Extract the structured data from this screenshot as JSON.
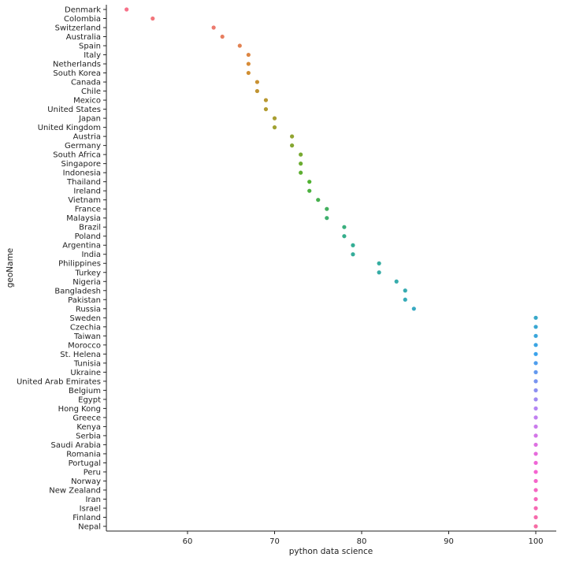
{
  "chart_data": {
    "type": "scatter",
    "title": "",
    "xlabel": "python data science",
    "ylabel": "geoName",
    "xlim": [
      50.5,
      102.4
    ],
    "xticks": [
      60,
      70,
      80,
      90,
      100
    ],
    "grid": false,
    "legend": "none",
    "categories": [
      "Denmark",
      "Colombia",
      "Switzerland",
      "Australia",
      "Spain",
      "Italy",
      "Netherlands",
      "South Korea",
      "Canada",
      "Chile",
      "Mexico",
      "United States",
      "Japan",
      "United Kingdom",
      "Austria",
      "Germany",
      "South Africa",
      "Singapore",
      "Indonesia",
      "Thailand",
      "Ireland",
      "Vietnam",
      "France",
      "Malaysia",
      "Brazil",
      "Poland",
      "Argentina",
      "India",
      "Philippines",
      "Turkey",
      "Nigeria",
      "Bangladesh",
      "Pakistan",
      "Russia",
      "Sweden",
      "Czechia",
      "Taiwan",
      "Morocco",
      "St. Helena",
      "Tunisia",
      "Ukraine",
      "United Arab Emirates",
      "Belgium",
      "Egypt",
      "Hong Kong",
      "Greece",
      "Kenya",
      "Serbia",
      "Saudi Arabia",
      "Romania",
      "Portugal",
      "Peru",
      "Norway",
      "New Zealand",
      "Iran",
      "Israel",
      "Finland",
      "Nepal"
    ],
    "values": [
      53,
      56,
      63,
      64,
      66,
      67,
      67,
      67,
      68,
      68,
      69,
      69,
      70,
      70,
      72,
      72,
      73,
      73,
      73,
      74,
      74,
      75,
      76,
      76,
      78,
      78,
      79,
      79,
      82,
      82,
      84,
      85,
      85,
      86,
      100,
      100,
      100,
      100,
      100,
      100,
      100,
      100,
      100,
      100,
      100,
      100,
      100,
      100,
      100,
      100,
      100,
      100,
      100,
      100,
      100,
      100,
      100,
      100
    ],
    "palette_anchors": [
      "#f77189",
      "#d58c32",
      "#a4a031",
      "#50b131",
      "#34ae91",
      "#37abb5",
      "#3ba3ec",
      "#bb83f4",
      "#f563d4",
      "#f66ca4"
    ]
  }
}
